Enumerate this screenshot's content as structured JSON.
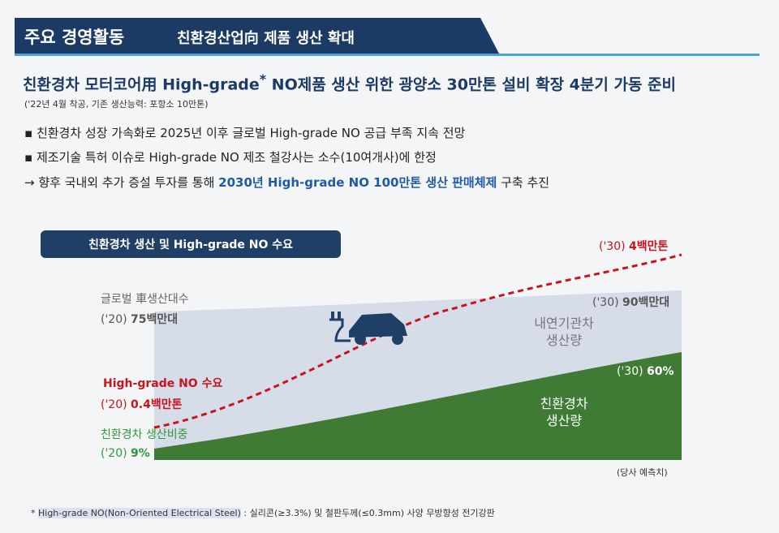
{
  "header": {
    "title": "주요 경영활동",
    "subtitle": "친환경산업向 제품 생산 확대"
  },
  "headline": {
    "main": "친환경차 모터코어用 High-grade",
    "mark": "*",
    "rest": " NO제품 생산 위한 광양소 30만톤 설비 확장 4분기 가동 준비"
  },
  "note": "('22년 4월 착공, 기존 생산능력: 포항소 10만톤)",
  "bullets": [
    "친환경차 성장 가속화로 2025년 이후 글로벌 High-grade NO 공급 부족 지속 전망",
    "제조기술 특허 이슈로 High-grade NO 제조 철강사는 소수(10여개사)에 한정"
  ],
  "conclusion": {
    "prefix": "→ 향후 국내외 추가 증설 투자를 통해 ",
    "highlight": "2030년 High-grade NO 100만톤 생산 판매체제",
    "suffix": " 구축 추진"
  },
  "chart": {
    "title": "친환경차 생산 및 High-grade NO 수요",
    "global": {
      "label": "글로벌 車생산대수",
      "year": "('20)",
      "value": "75백만대",
      "end_year": "('30)",
      "end_value": "90백만대"
    },
    "demand": {
      "label": "High-grade NO 수요",
      "year": "('20)",
      "value": "0.4백만톤",
      "end_year": "('30)",
      "end_value": "4백만톤"
    },
    "eco": {
      "label": "친환경차 생산비중",
      "year": "('20)",
      "value": "9%",
      "end_year": "('30)",
      "end_value": "60%"
    },
    "ice_area": [
      "내연기관차",
      "생산량"
    ],
    "eco_area": [
      "친환경차",
      "생산량"
    ],
    "source": "(당사 예측치)"
  },
  "footnote": {
    "mark": "*",
    "term": "High-grade NO(Non-Oriented Electrical Steel)",
    "rest": " : 실리콘(≥3.3%) 및 철판두께(≤0.3mm) 사양 무방향성 전기강판"
  }
}
